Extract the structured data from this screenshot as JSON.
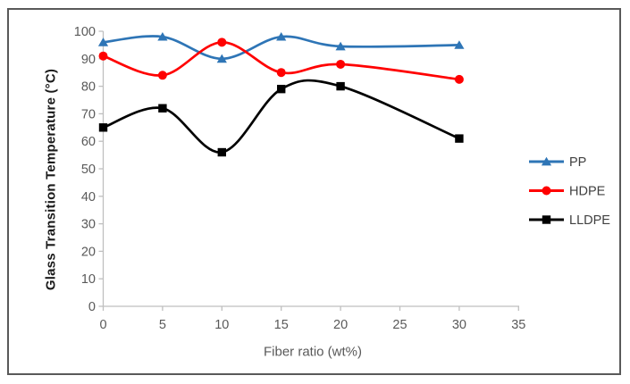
{
  "chart_data": {
    "type": "line",
    "title": "",
    "xlabel": "Fiber ratio (wt%)",
    "ylabel": "Glass Transition Temperature (°C)",
    "x": [
      0,
      5,
      10,
      15,
      20,
      30
    ],
    "series": [
      {
        "name": "PP",
        "color": "#2E75B6",
        "marker": "triangle",
        "values": [
          96,
          98,
          90,
          98,
          94.5,
          95
        ]
      },
      {
        "name": "HDPE",
        "color": "#FF0000",
        "marker": "circle",
        "values": [
          91,
          84,
          96,
          85,
          88,
          82.5
        ]
      },
      {
        "name": "LLDPE",
        "color": "#000000",
        "marker": "square",
        "values": [
          65,
          72,
          56,
          79,
          80,
          61
        ]
      }
    ],
    "xlim": [
      0,
      35
    ],
    "ylim": [
      0,
      100
    ],
    "xticks": [
      0,
      5,
      10,
      15,
      20,
      25,
      30,
      35
    ],
    "yticks": [
      0,
      10,
      20,
      30,
      40,
      50,
      60,
      70,
      80,
      90,
      100
    ],
    "grid": false,
    "smooth": true,
    "legend_position": "right"
  },
  "styles": {
    "background": "#FFFFFF",
    "frame_border_color": "#595959",
    "axis_line_color": "#BFBFBF",
    "tick_label_color": "#595959",
    "xlabel_color": "#595959",
    "ylabel_color": "#1A1A1A",
    "legend_text_color": "#404040"
  }
}
